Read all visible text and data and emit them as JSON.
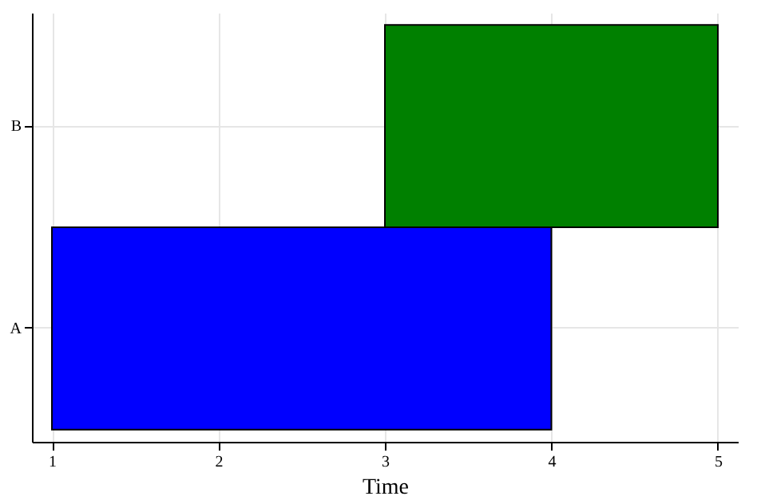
{
  "chart_data": {
    "type": "bar",
    "orientation": "horizontal",
    "xlabel": "Time",
    "categories": [
      "B",
      "A"
    ],
    "values": [
      2,
      3
    ],
    "base": [
      3,
      1
    ],
    "colors": [
      "#008000",
      "#0000ff"
    ],
    "xlim": [
      0.88,
      5.12
    ],
    "xticks": [
      1,
      2,
      3,
      4,
      5
    ],
    "grid": true
  }
}
